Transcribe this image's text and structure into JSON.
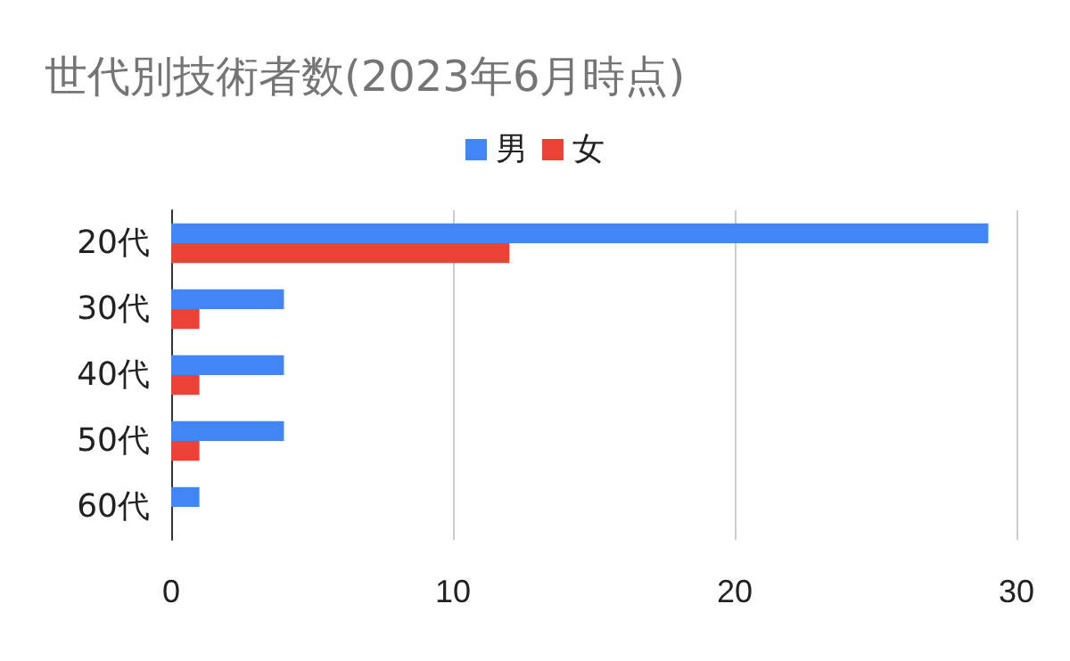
{
  "chart_data": {
    "type": "bar",
    "orientation": "horizontal",
    "title": "世代別技術者数(2023年6月時点)",
    "categories": [
      "20代",
      "30代",
      "40代",
      "50代",
      "60代"
    ],
    "series": [
      {
        "name": "男",
        "color": "#4285f4",
        "values": [
          29,
          4,
          4,
          4,
          1
        ]
      },
      {
        "name": "女",
        "color": "#ea4335",
        "values": [
          12,
          1,
          1,
          1,
          0
        ]
      }
    ],
    "xlim": [
      0,
      30
    ],
    "xticks": [
      0,
      10,
      20,
      30
    ],
    "grid": "x",
    "legend": "top"
  }
}
